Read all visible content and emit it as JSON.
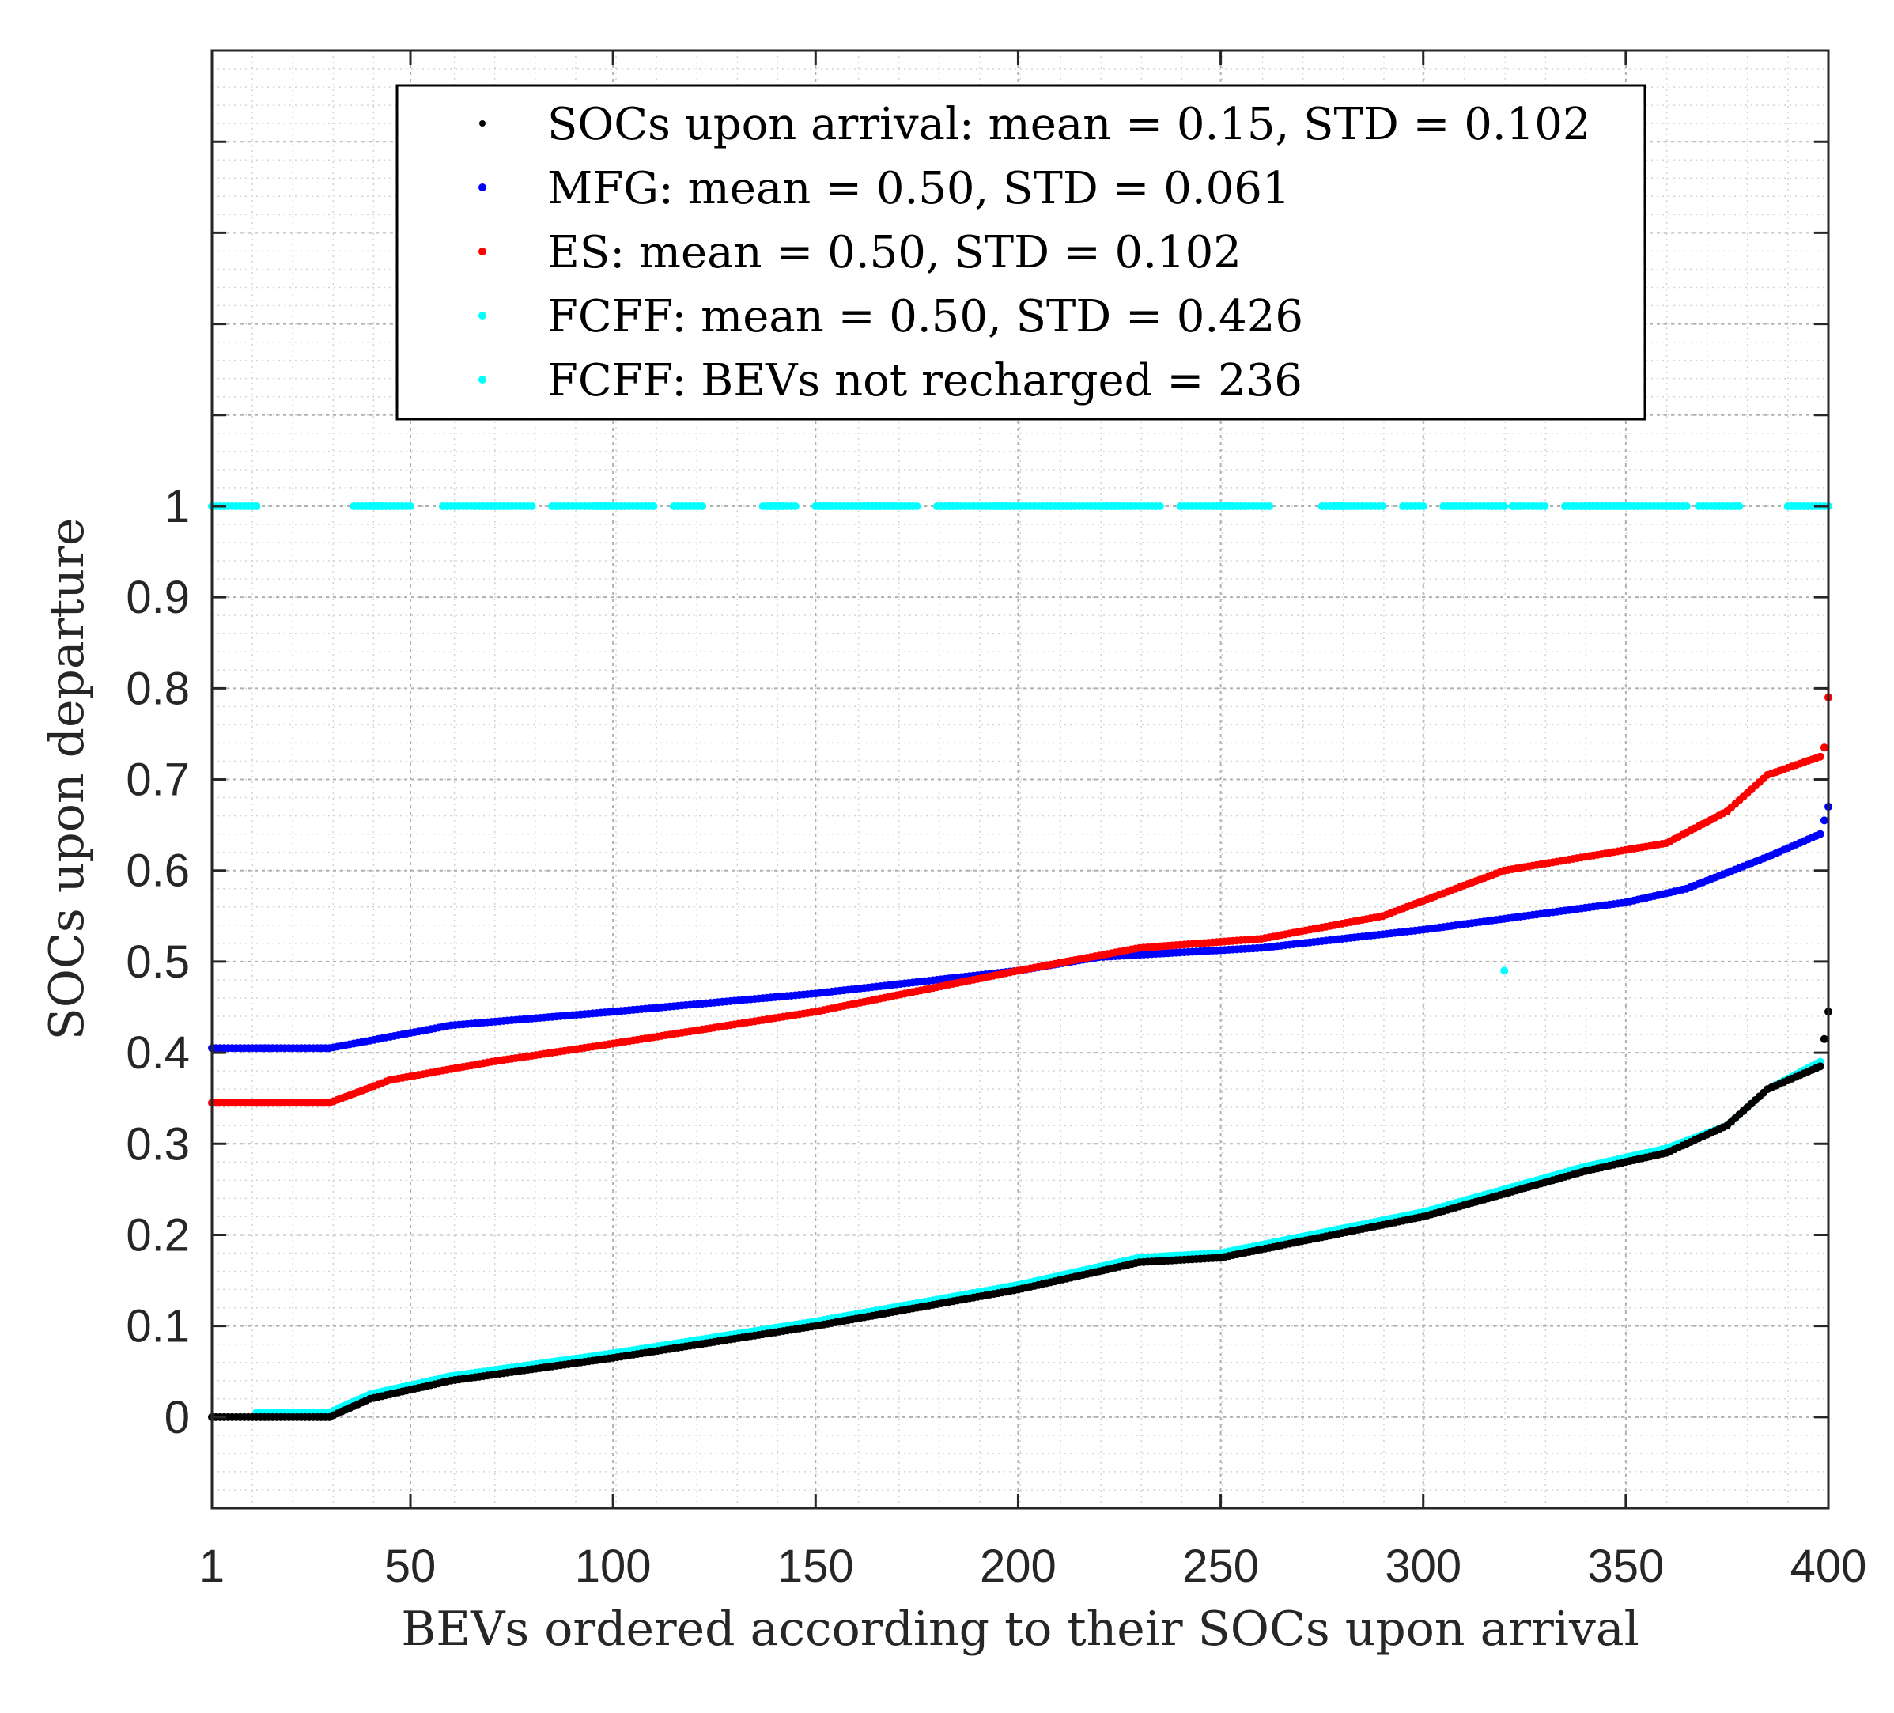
{
  "chart_data": {
    "type": "scatter",
    "title": "",
    "xlabel": "BEVs ordered according to their SOCs upon arrival",
    "ylabel": "SOCs upon departure",
    "xlim": [
      1,
      400
    ],
    "ylim": [
      -0.1,
      1.5
    ],
    "x_ticks": [
      1,
      50,
      100,
      150,
      200,
      250,
      300,
      350,
      400
    ],
    "y_ticks": [
      0,
      0.1,
      0.2,
      0.3,
      0.4,
      0.5,
      0.6,
      0.7,
      0.8,
      0.9,
      1
    ],
    "x_tick_labels": [
      "1",
      "50",
      "100",
      "150",
      "200",
      "250",
      "300",
      "350",
      "400"
    ],
    "y_tick_labels": [
      "0",
      "0.1",
      "0.2",
      "0.3",
      "0.4",
      "0.5",
      "0.6",
      "0.7",
      "0.8",
      "0.9",
      "1"
    ],
    "grid": true,
    "minor_grid": true,
    "legend_position": "top-center",
    "series": [
      {
        "name": "SOCs upon arrival: mean = 0.15, STD = 0.102",
        "color": "#000000",
        "anchors": [
          [
            1,
            0
          ],
          [
            30,
            0
          ],
          [
            40,
            0.02
          ],
          [
            60,
            0.04
          ],
          [
            100,
            0.065
          ],
          [
            150,
            0.1
          ],
          [
            200,
            0.14
          ],
          [
            230,
            0.17
          ],
          [
            250,
            0.175
          ],
          [
            300,
            0.22
          ],
          [
            340,
            0.27
          ],
          [
            360,
            0.29
          ],
          [
            375,
            0.32
          ],
          [
            385,
            0.36
          ],
          [
            398,
            0.385
          ],
          [
            400,
            0.445
          ]
        ]
      },
      {
        "name": "MFG: mean = 0.50, STD = 0.061",
        "color": "#0000ff",
        "anchors": [
          [
            1,
            0.405
          ],
          [
            30,
            0.405
          ],
          [
            60,
            0.43
          ],
          [
            100,
            0.445
          ],
          [
            150,
            0.465
          ],
          [
            200,
            0.49
          ],
          [
            220,
            0.505
          ],
          [
            260,
            0.515
          ],
          [
            300,
            0.535
          ],
          [
            350,
            0.565
          ],
          [
            365,
            0.58
          ],
          [
            385,
            0.615
          ],
          [
            398,
            0.64
          ],
          [
            400,
            0.67
          ]
        ]
      },
      {
        "name": "ES: mean = 0.50, STD = 0.102",
        "color": "#ff0000",
        "anchors": [
          [
            1,
            0.345
          ],
          [
            30,
            0.345
          ],
          [
            45,
            0.37
          ],
          [
            70,
            0.39
          ],
          [
            100,
            0.41
          ],
          [
            150,
            0.445
          ],
          [
            200,
            0.49
          ],
          [
            230,
            0.515
          ],
          [
            260,
            0.525
          ],
          [
            290,
            0.55
          ],
          [
            320,
            0.6
          ],
          [
            360,
            0.63
          ],
          [
            375,
            0.665
          ],
          [
            385,
            0.705
          ],
          [
            398,
            0.725
          ],
          [
            399,
            0.735
          ],
          [
            400,
            0.79
          ]
        ]
      },
      {
        "name": "FCFF: mean = 0.50, STD = 0.426",
        "color": "#00ffff",
        "anchors": [
          [
            12,
            0.005
          ],
          [
            30,
            0.005
          ],
          [
            40,
            0.025
          ],
          [
            60,
            0.045
          ],
          [
            100,
            0.07
          ],
          [
            150,
            0.105
          ],
          [
            200,
            0.145
          ],
          [
            230,
            0.175
          ],
          [
            250,
            0.18
          ],
          [
            300,
            0.225
          ],
          [
            340,
            0.275
          ],
          [
            360,
            0.295
          ],
          [
            375,
            0.32
          ],
          [
            385,
            0.36
          ],
          [
            398,
            0.39
          ]
        ],
        "extra_points": [
          [
            320,
            0.49
          ]
        ]
      },
      {
        "name": "FCFF: BEVs not recharged = 236",
        "color": "#00ffff",
        "y_value": 1,
        "x_segments": [
          [
            1,
            12
          ],
          [
            36,
            50
          ],
          [
            58,
            80
          ],
          [
            85,
            110
          ],
          [
            115,
            122
          ],
          [
            137,
            145
          ],
          [
            150,
            165
          ],
          [
            160,
            175
          ],
          [
            180,
            235
          ],
          [
            240,
            262
          ],
          [
            275,
            280
          ],
          [
            278,
            290
          ],
          [
            295,
            300
          ],
          [
            305,
            320
          ],
          [
            322,
            330
          ],
          [
            335,
            345
          ],
          [
            340,
            365
          ],
          [
            368,
            378
          ],
          [
            390,
            400
          ]
        ]
      }
    ]
  }
}
